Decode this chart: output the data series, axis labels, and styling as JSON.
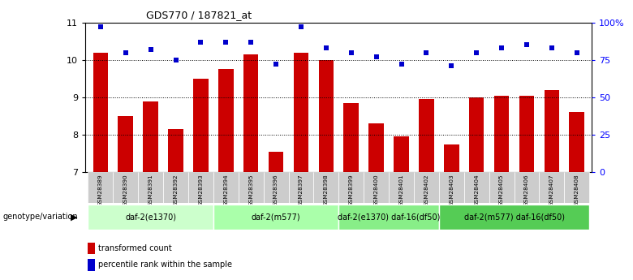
{
  "title": "GDS770 / 187821_at",
  "samples": [
    "GSM28389",
    "GSM28390",
    "GSM28391",
    "GSM28392",
    "GSM28393",
    "GSM28394",
    "GSM28395",
    "GSM28396",
    "GSM28397",
    "GSM28398",
    "GSM28399",
    "GSM28400",
    "GSM28401",
    "GSM28402",
    "GSM28403",
    "GSM28404",
    "GSM28405",
    "GSM28406",
    "GSM28407",
    "GSM28408"
  ],
  "bar_values": [
    10.2,
    8.5,
    8.9,
    8.15,
    9.5,
    9.75,
    10.15,
    7.55,
    10.2,
    10.0,
    8.85,
    8.3,
    7.95,
    8.95,
    7.75,
    9.0,
    9.05,
    9.05,
    9.2,
    8.6
  ],
  "dot_values": [
    97,
    80,
    82,
    75,
    87,
    87,
    87,
    72,
    97,
    83,
    80,
    77,
    72,
    80,
    71,
    80,
    83,
    85,
    83,
    80
  ],
  "ylim_left": [
    7,
    11
  ],
  "ylim_right": [
    0,
    100
  ],
  "yticks_left": [
    7,
    8,
    9,
    10,
    11
  ],
  "yticks_right": [
    0,
    25,
    50,
    75,
    100
  ],
  "ytick_labels_right": [
    "0",
    "25",
    "50",
    "75",
    "100%"
  ],
  "bar_color": "#cc0000",
  "dot_color": "#0000cc",
  "grid_color": "#000000",
  "groups": [
    {
      "label": "daf-2(e1370)",
      "start": 0,
      "end": 5,
      "color": "#ccffcc"
    },
    {
      "label": "daf-2(m577)",
      "start": 5,
      "end": 10,
      "color": "#aaffaa"
    },
    {
      "label": "daf-2(e1370) daf-16(df50)",
      "start": 10,
      "end": 14,
      "color": "#88ee88"
    },
    {
      "label": "daf-2(m577) daf-16(df50)",
      "start": 14,
      "end": 20,
      "color": "#55cc55"
    }
  ],
  "genotype_label": "genotype/variation",
  "legend_bar_label": "transformed count",
  "legend_dot_label": "percentile rank within the sample",
  "bg_color": "#ffffff",
  "sample_label_bg": "#cccccc"
}
